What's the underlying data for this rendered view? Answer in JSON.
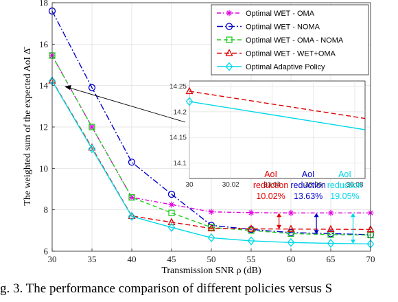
{
  "caption": "g. 3.  The performance comparison of different policies versus S",
  "chart_data": {
    "type": "line",
    "xlabel": "Transmission SNR ρ (dB)",
    "ylabel": "The weighted sum of the expected AoI Δ̄",
    "xlim": [
      30,
      70
    ],
    "ylim": [
      6,
      18
    ],
    "x_ticks": [
      30,
      35,
      40,
      45,
      50,
      55,
      60,
      65,
      70
    ],
    "y_ticks": [
      6,
      8,
      10,
      12,
      14,
      16,
      18
    ],
    "grid": true,
    "legend_position": "top-right",
    "x": [
      30,
      35,
      40,
      45,
      50,
      55,
      60,
      65,
      70
    ],
    "series": [
      {
        "name": "Optimal WET - OMA",
        "color": "#e000e0",
        "dash": "6,3,1.5,3",
        "marker": "star",
        "values": [
          15.45,
          12.0,
          8.6,
          8.25,
          7.9,
          7.86,
          7.85,
          7.85,
          7.85
        ]
      },
      {
        "name": "Optimal WET - NOMA",
        "color": "#0000cc",
        "dash": "9,3,2,3",
        "marker": "circle",
        "values": [
          17.6,
          13.9,
          10.3,
          8.75,
          7.25,
          7.05,
          6.9,
          6.85,
          6.8
        ]
      },
      {
        "name": "Optimal WET - OMA - NOMA",
        "color": "#22cc22",
        "dash": "6,4",
        "marker": "square",
        "values": [
          15.45,
          12.0,
          8.6,
          7.85,
          7.15,
          7.0,
          6.85,
          6.8,
          6.78
        ]
      },
      {
        "name": "Optimal WET - WET+OMA",
        "color": "#dd0000",
        "dash": "7,4",
        "marker": "triangle",
        "values": [
          14.24,
          11.0,
          7.7,
          7.4,
          7.1,
          7.08,
          7.07,
          7.06,
          7.05
        ]
      },
      {
        "name": "Optimal Adaptive Policy",
        "color": "#00d8e8",
        "dash": "",
        "marker": "diamond",
        "values": [
          14.22,
          10.95,
          7.68,
          7.15,
          6.65,
          6.5,
          6.42,
          6.38,
          6.35
        ]
      }
    ],
    "inset": {
      "xlim": [
        30,
        30.085
      ],
      "ylim": [
        14.07,
        14.26
      ],
      "x_ticks": [
        30,
        30.02,
        30.04,
        30.06,
        30.08
      ],
      "y_ticks": [
        14.1,
        14.15,
        14.2,
        14.25
      ],
      "x_tick_labels": [
        "30",
        "30.02",
        "30.04",
        "30.06",
        "30.08"
      ],
      "y_tick_labels": [
        "14.1",
        "14.15",
        "14.2",
        "14.25"
      ],
      "series": [
        {
          "color": "#dd0000",
          "dash": "7,4",
          "marker": "triangle",
          "points": [
            [
              30,
              14.24
            ],
            [
              30.085,
              14.187
            ]
          ]
        },
        {
          "color": "#00d8e8",
          "dash": "",
          "marker": "diamond",
          "points": [
            [
              30,
              14.22
            ],
            [
              30.085,
              14.165
            ]
          ]
        }
      ]
    },
    "annotations": [
      {
        "lines": [
          "AoI",
          "reduction",
          "10.02%"
        ],
        "color": "#dd0000",
        "x": 58.5,
        "from": 7.85,
        "to": 7.07
      },
      {
        "lines": [
          "AoI",
          "reduction",
          "13.63%"
        ],
        "color": "#0000cc",
        "x": 63.2,
        "from": 7.85,
        "to": 6.82
      },
      {
        "lines": [
          "AoI",
          "reduction",
          "19.05%"
        ],
        "color": "#00d8e8",
        "x": 67.8,
        "from": 7.85,
        "to": 6.36
      }
    ]
  }
}
